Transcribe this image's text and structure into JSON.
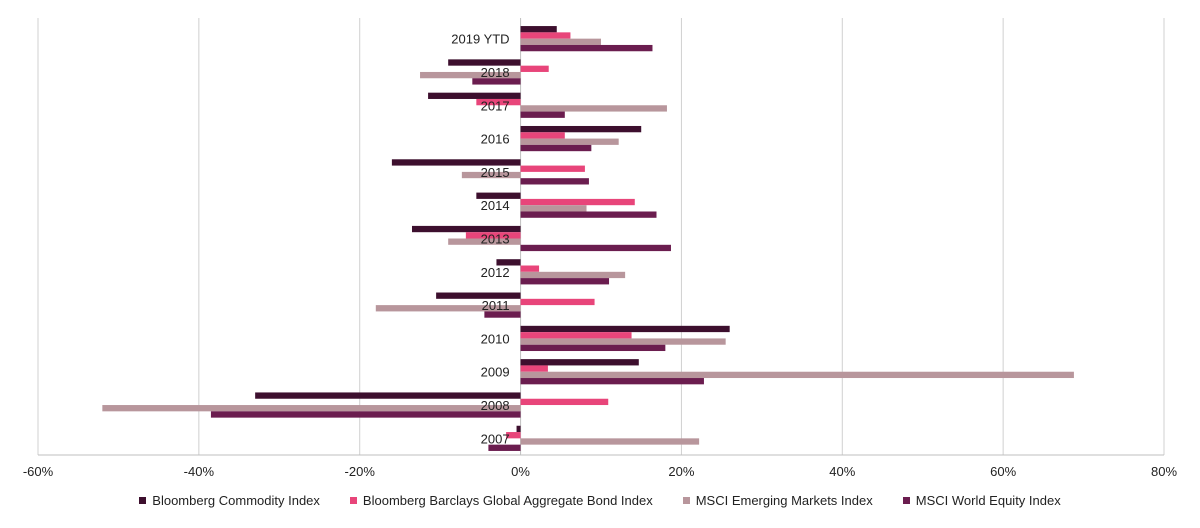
{
  "chart_data": {
    "type": "bar",
    "orientation": "horizontal",
    "categories": [
      "2019 YTD",
      "2018",
      "2017",
      "2016",
      "2015",
      "2014",
      "2013",
      "2012",
      "2011",
      "2010",
      "2009",
      "2008",
      "2007"
    ],
    "series": [
      {
        "name": "Bloomberg Commodity Index",
        "color": "#3d0f2e",
        "values": [
          4.5,
          -9,
          -11.5,
          15,
          -16,
          -5.5,
          -13.5,
          -3,
          -10.5,
          26,
          14.7,
          -33,
          -0.5
        ]
      },
      {
        "name": "Bloomberg Barclays Global Aggregate Bond Index",
        "color": "#e8457a",
        "values": [
          6.2,
          3.5,
          -5.5,
          5.5,
          8,
          14.2,
          -6.8,
          2.3,
          9.2,
          13.8,
          3.4,
          10.9,
          -1.8
        ]
      },
      {
        "name": "MSCI Emerging Markets Index",
        "color": "#b8969c",
        "values": [
          10,
          -12.5,
          18.2,
          12.2,
          -7.3,
          8.2,
          -9,
          13,
          -18,
          25.5,
          68.8,
          -52,
          22.2
        ]
      },
      {
        "name": "MSCI World Equity Index",
        "color": "#6b1d4f",
        "values": [
          16.4,
          -6,
          5.5,
          8.8,
          8.5,
          16.9,
          18.7,
          11,
          -4.5,
          18,
          22.8,
          -38.5,
          -4
        ]
      }
    ],
    "xlim": [
      -60,
      80
    ],
    "xticks": [
      -60,
      -40,
      -20,
      0,
      20,
      40,
      60,
      80
    ],
    "xtick_labels": [
      "-60%",
      "-40%",
      "-20%",
      "0%",
      "20%",
      "40%",
      "60%",
      "80%"
    ],
    "grid": "vertical",
    "legend_position": "bottom"
  }
}
